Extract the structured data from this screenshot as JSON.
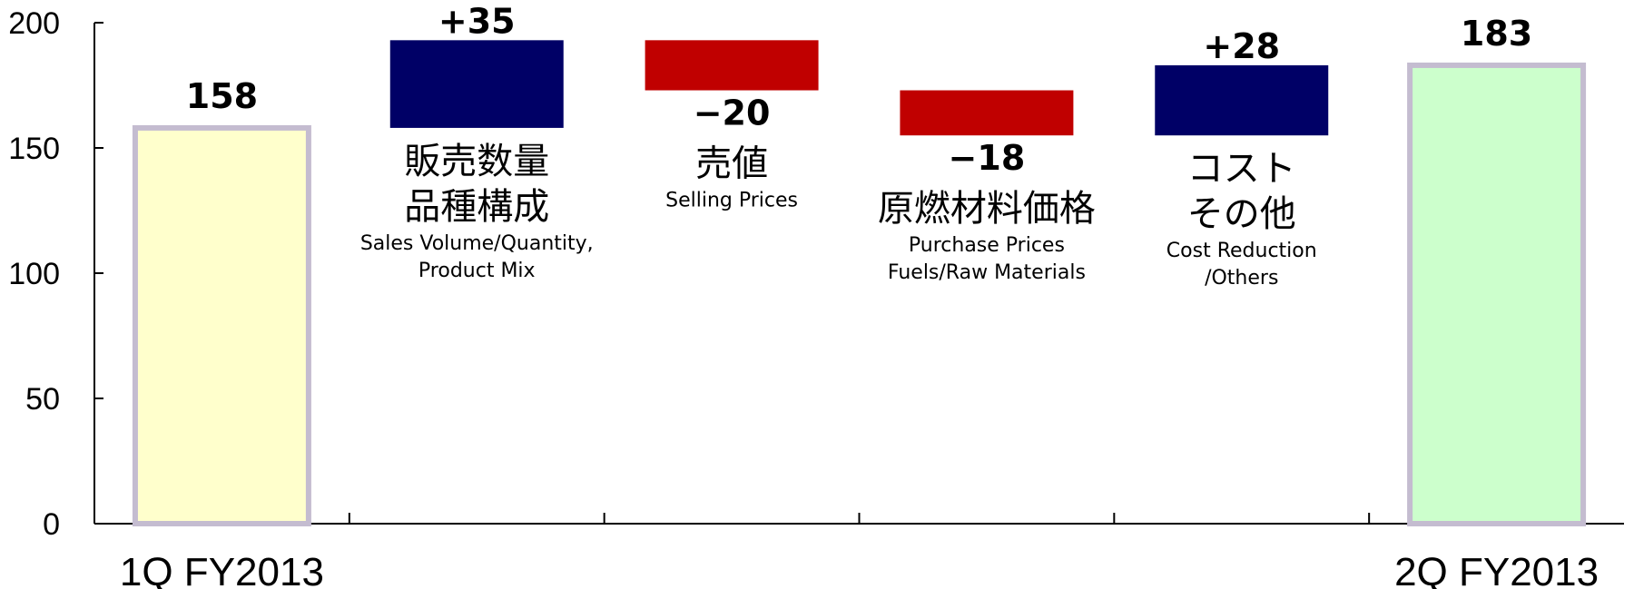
{
  "chart_data": {
    "type": "bar",
    "subtype": "waterfall",
    "ylim": [
      0,
      200
    ],
    "yticks": [
      "0",
      "50",
      "100",
      "150",
      "200"
    ],
    "grid": false,
    "legend": "none",
    "steps": [
      {
        "kind": "total",
        "value": 158,
        "label": "158",
        "category_label": "1Q FY2013",
        "color": "#FFFFCC",
        "border": "#C4BCD0"
      },
      {
        "kind": "delta",
        "value": 35,
        "label": "+35",
        "name_jp": [
          "販売数量",
          "品種構成"
        ],
        "name_en": [
          "Sales Volume/Quantity,",
          "Product Mix"
        ],
        "color": "#000066"
      },
      {
        "kind": "delta",
        "value": -20,
        "label": "−20",
        "name_jp": [
          "売値"
        ],
        "name_en": [
          "Selling Prices"
        ],
        "color": "#C00000"
      },
      {
        "kind": "delta",
        "value": -18,
        "label": "−18",
        "name_jp": [
          "原燃材料価格"
        ],
        "name_en": [
          "Purchase Prices",
          "Fuels/Raw Materials"
        ],
        "color": "#C00000"
      },
      {
        "kind": "delta",
        "value": 28,
        "label": "+28",
        "name_jp": [
          "コスト",
          "その他"
        ],
        "name_en": [
          "Cost Reduction",
          "/Others"
        ],
        "color": "#000066"
      },
      {
        "kind": "total",
        "value": 183,
        "label": "183",
        "category_label": "2Q FY2013",
        "color": "#CCFFCC",
        "border": "#C4BCD0"
      }
    ]
  }
}
